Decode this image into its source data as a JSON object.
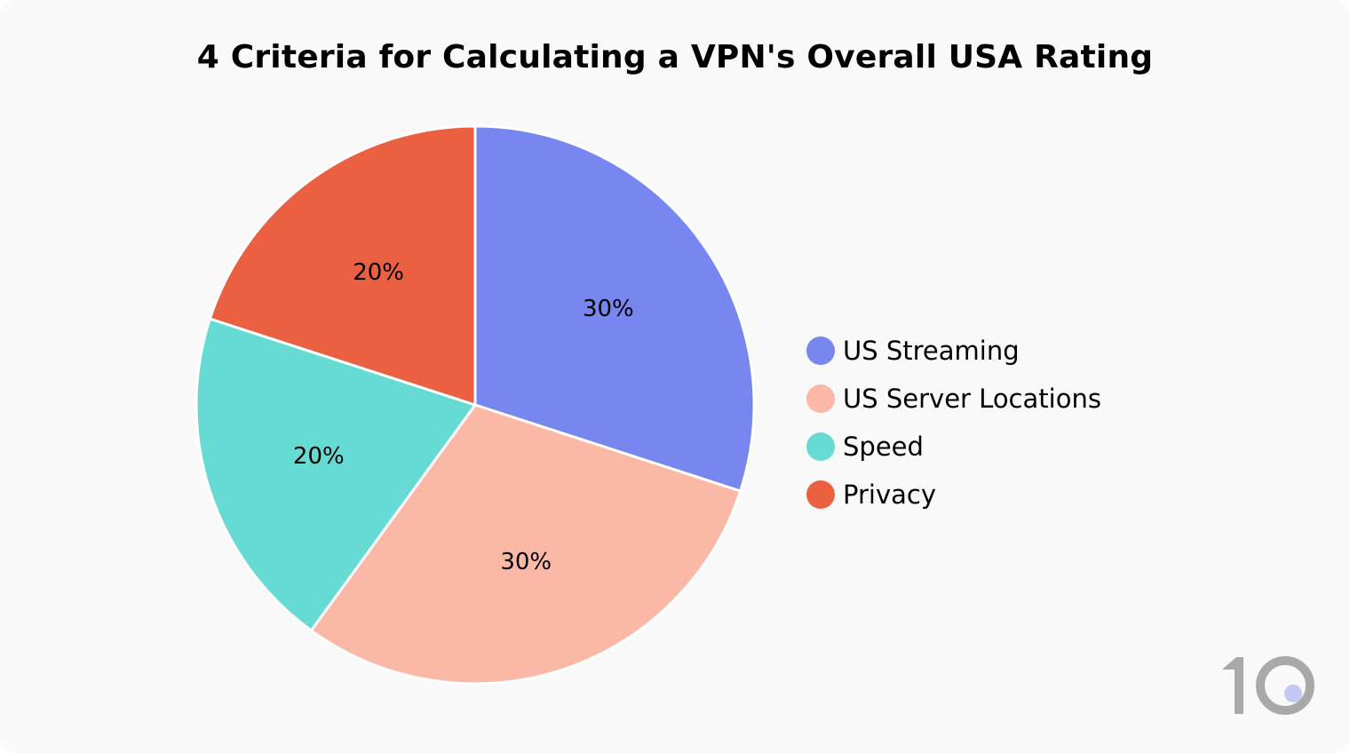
{
  "chart_data": {
    "type": "pie",
    "title": "4 Criteria for Calculating a VPN's Overall USA Rating",
    "categories": [
      "US Streaming",
      "US Server Locations",
      "Speed",
      "Privacy"
    ],
    "values": [
      30,
      30,
      20,
      20
    ],
    "data_labels": [
      "30%",
      "30%",
      "20%",
      "20%"
    ],
    "colors": [
      "#7886f0",
      "#fbb8a6",
      "#66dbd3",
      "#eb6040"
    ],
    "start": "top",
    "direction": "clockwise",
    "legend_position": "right"
  },
  "logo": {
    "text": "10",
    "color": "#a9a9a9",
    "dot_color": "#c5c8f2"
  }
}
